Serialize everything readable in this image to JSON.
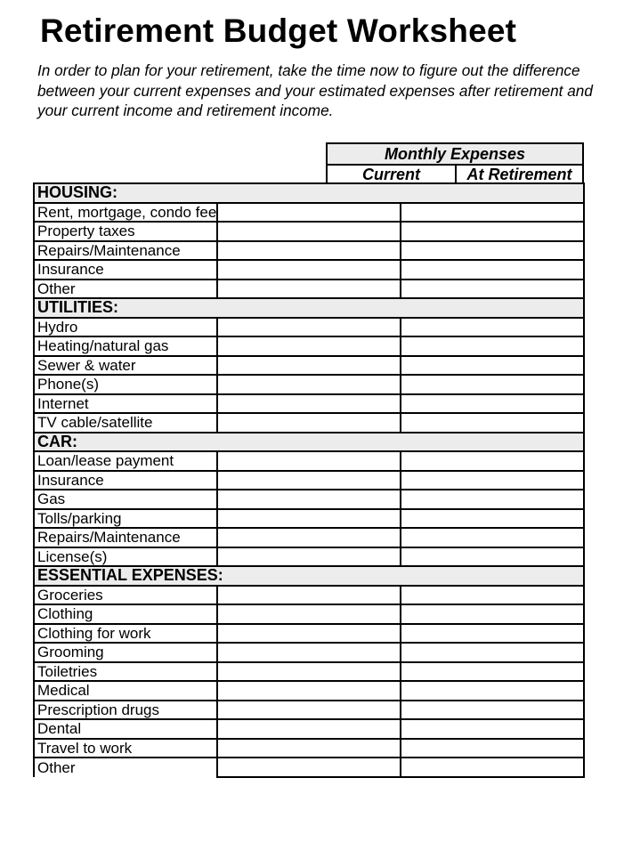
{
  "title": "Retirement Budget Worksheet",
  "intro": "In order to plan for your retirement, take the time now to figure out the difference between your current expenses and your estimated expenses after retirement and your current income and retirement income.",
  "header": {
    "group": "Monthly Expenses",
    "current": "Current",
    "at_retirement": "At Retirement"
  },
  "sections": [
    {
      "label": "HOUSING:",
      "items": [
        "Rent, mortgage, condo fees",
        "Property taxes",
        "Repairs/Maintenance",
        "Insurance",
        "Other"
      ]
    },
    {
      "label": "UTILITIES:",
      "items": [
        "Hydro",
        "Heating/natural gas",
        "Sewer & water",
        "Phone(s)",
        "Internet",
        "TV cable/satellite"
      ]
    },
    {
      "label": "CAR:",
      "items": [
        "Loan/lease payment",
        "Insurance",
        "Gas",
        "Tolls/parking",
        "Repairs/Maintenance",
        "License(s)"
      ]
    },
    {
      "label": "ESSENTIAL EXPENSES:",
      "items": [
        "Groceries",
        "Clothing",
        "Clothing for work",
        "Grooming",
        "Toiletries",
        "Medical",
        "Prescription drugs",
        "Dental",
        "Travel to work",
        "Other"
      ]
    }
  ]
}
